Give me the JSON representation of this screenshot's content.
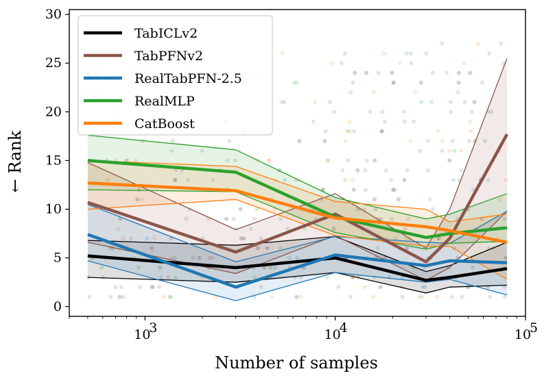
{
  "chart_data": {
    "type": "line",
    "title": "",
    "xlabel": "Number of samples",
    "ylabel": "← Rank",
    "xscale": "log",
    "xlim": [
      400,
      100000
    ],
    "ylim": [
      -1,
      30.5
    ],
    "yticks": [
      0,
      5,
      10,
      15,
      20,
      25,
      30
    ],
    "ytick_labels": [
      "0",
      "5",
      "10",
      "15",
      "20",
      "25",
      "30"
    ],
    "xticks": [
      1000,
      10000,
      100000
    ],
    "xtick_bases": [
      "10",
      "10",
      "10"
    ],
    "xtick_exponents": [
      "3",
      "4",
      "5"
    ],
    "legend_position": "top-left",
    "x": [
      500,
      3000,
      10000,
      30000,
      40000,
      80000
    ],
    "series": [
      {
        "name": "TabICLv2",
        "color": "#000000",
        "values": [
          5.2,
          4.0,
          5.0,
          2.7,
          3.0,
          3.9
        ],
        "lower": [
          3.0,
          2.5,
          3.5,
          1.4,
          2.0,
          2.2
        ],
        "upper": [
          6.8,
          6.3,
          7.2,
          3.6,
          4.2,
          6.6
        ]
      },
      {
        "name": "TabPFNv2",
        "color": "#8c564b",
        "values": [
          10.7,
          5.6,
          9.5,
          4.6,
          7.0,
          17.7
        ],
        "lower": [
          6.6,
          3.4,
          7.3,
          2.7,
          4.0,
          9.8
        ],
        "upper": [
          14.8,
          7.9,
          11.6,
          6.0,
          10.0,
          25.5
        ]
      },
      {
        "name": "RealTabPFN-2.5",
        "color": "#1f77b4",
        "values": [
          7.4,
          2.0,
          5.3,
          4.2,
          4.7,
          4.5
        ],
        "lower": [
          4.7,
          0.6,
          3.5,
          2.5,
          2.8,
          1.2
        ],
        "upper": [
          10.5,
          4.6,
          7.2,
          6.6,
          6.5,
          9.8
        ]
      },
      {
        "name": "RealMLP",
        "color": "#2ca02c",
        "values": [
          15.0,
          13.8,
          9.2,
          7.1,
          7.5,
          8.1
        ],
        "lower": [
          12.0,
          11.8,
          7.6,
          5.9,
          6.5,
          6.7
        ],
        "upper": [
          17.6,
          16.1,
          11.2,
          9.0,
          9.5,
          11.6
        ]
      },
      {
        "name": "CatBoost",
        "color": "#ff7f0e",
        "values": [
          12.7,
          11.9,
          9.1,
          8.2,
          7.8,
          6.6
        ],
        "lower": [
          10.0,
          11.0,
          7.3,
          6.2,
          6.2,
          2.8
        ],
        "upper": [
          15.0,
          14.4,
          10.8,
          10.0,
          8.7,
          9.5
        ]
      }
    ],
    "scatter_seed": 7
  }
}
